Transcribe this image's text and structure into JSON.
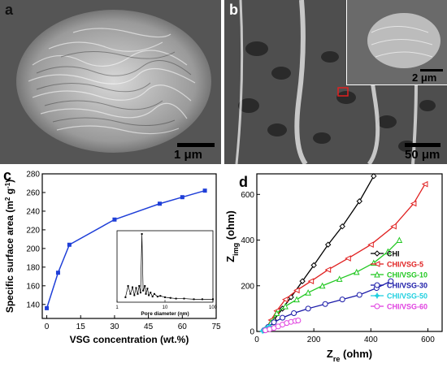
{
  "panels": {
    "a": {
      "label": "a",
      "scalebar": "1 μm"
    },
    "b": {
      "label": "b",
      "scalebar": "50 μm",
      "inset_scalebar": "2 μm"
    },
    "c": {
      "label": "c"
    },
    "d": {
      "label": "d"
    }
  },
  "colors": {
    "blue": "#1f3fd8",
    "black": "#000000",
    "red": "#e02020",
    "green": "#22c822",
    "navy": "#1a1aa8",
    "cyan": "#22d0e0",
    "magenta": "#e040e0"
  },
  "chart_data": [
    {
      "type": "line",
      "panel": "c",
      "xlabel": "VSG concentration (wt.%)",
      "ylabel_main": "Specific surface area (m",
      "ylabel_sup1": "2",
      "ylabel_mid": " g",
      "ylabel_sup2": "-1",
      "ylabel_end": ")",
      "xlim": [
        -2,
        75
      ],
      "ylim": [
        125,
        280
      ],
      "xticks": [
        "0",
        "15",
        "30",
        "45",
        "60",
        "75"
      ],
      "yticks": [
        "140",
        "160",
        "180",
        "200",
        "220",
        "240",
        "260",
        "280"
      ],
      "x": [
        0,
        5,
        10,
        30,
        50,
        60,
        70
      ],
      "y": [
        136,
        174,
        204,
        231,
        248,
        255,
        262
      ],
      "inset": {
        "xlabel": "Pore diameter (nm)",
        "xticks": [
          "1",
          "10",
          "100"
        ],
        "x": [
          1.5,
          1.7,
          1.9,
          2.1,
          2.3,
          2.5,
          2.7,
          2.9,
          3.1,
          3.3,
          3.5,
          3.8,
          4.0,
          4.3,
          4.6,
          5.0,
          5.5,
          6.0,
          7.0,
          8.0,
          10,
          13,
          17,
          25,
          40,
          60,
          100
        ],
        "y": [
          0.05,
          0.22,
          0.1,
          0.2,
          0.08,
          0.19,
          0.1,
          0.22,
          0.12,
          1.0,
          0.15,
          0.22,
          0.1,
          0.18,
          0.08,
          0.12,
          0.06,
          0.1,
          0.06,
          0.07,
          0.05,
          0.04,
          0.03,
          0.03,
          0.02,
          0.02,
          0.02
        ]
      }
    },
    {
      "type": "line",
      "panel": "d",
      "xlabel_main": "Z",
      "xlabel_sub": "re",
      "xlabel_end": " (ohm)",
      "ylabel_main": "Z",
      "ylabel_sub": "img",
      "ylabel_end": " (ohm)",
      "xlim": [
        0,
        650
      ],
      "ylim": [
        0,
        690
      ],
      "xticks": [
        "0",
        "200",
        "400",
        "600"
      ],
      "yticks": [
        "0",
        "200",
        "400",
        "600"
      ],
      "legend_position": "right",
      "series": [
        {
          "name": "CHI",
          "marker": "diamond",
          "color": "#000000",
          "x": [
            30,
            60,
            90,
            120,
            160,
            200,
            250,
            300,
            360,
            410
          ],
          "y": [
            10,
            50,
            100,
            150,
            220,
            290,
            380,
            460,
            570,
            680
          ]
        },
        {
          "name": "CHI/VSG-5",
          "marker": "triangle-left",
          "color": "#e02020",
          "x": [
            30,
            50,
            70,
            100,
            140,
            190,
            250,
            320,
            400,
            480,
            550,
            590
          ],
          "y": [
            10,
            50,
            90,
            140,
            180,
            220,
            270,
            320,
            380,
            460,
            560,
            645
          ]
        },
        {
          "name": "CHI/VSG-10",
          "marker": "triangle-up",
          "color": "#22c822",
          "x": [
            30,
            50,
            70,
            100,
            140,
            180,
            230,
            290,
            350,
            410,
            460,
            500
          ],
          "y": [
            10,
            40,
            80,
            110,
            140,
            170,
            200,
            230,
            260,
            300,
            350,
            400
          ]
        },
        {
          "name": "CHI/VSG-30",
          "marker": "circle",
          "color": "#1a1aa8",
          "x": [
            25,
            40,
            60,
            90,
            130,
            180,
            240,
            300,
            360,
            420,
            470
          ],
          "y": [
            5,
            20,
            40,
            60,
            80,
            100,
            120,
            140,
            160,
            190,
            220
          ]
        },
        {
          "name": "CHI/VSG-50",
          "marker": "star",
          "color": "#22d0e0",
          "x": [
            20,
            25,
            30,
            35,
            40,
            45
          ],
          "y": [
            2,
            6,
            10,
            14,
            18,
            22
          ]
        },
        {
          "name": "CHI/VSG-60",
          "marker": "circle",
          "color": "#e040e0",
          "x": [
            30,
            45,
            60,
            75,
            90,
            105,
            120,
            135,
            145
          ],
          "y": [
            5,
            10,
            15,
            22,
            30,
            37,
            42,
            46,
            48
          ]
        }
      ]
    }
  ]
}
